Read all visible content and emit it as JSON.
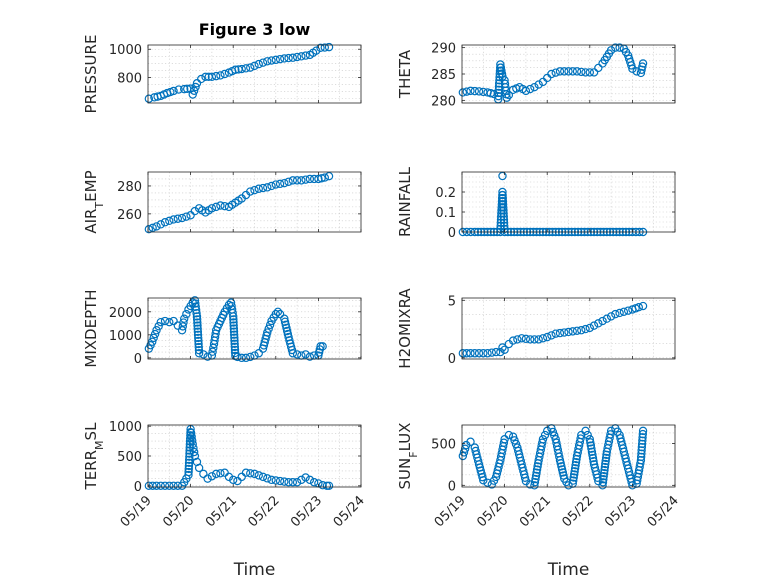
{
  "colors": {
    "marker": "#0072bd",
    "axis": "#262626",
    "grid": "#c8c8c8"
  },
  "chart_data": [
    {
      "type": "scatter",
      "title": "Figure 3 low",
      "ylabel": "PRESSURE",
      "xlim": [
        0,
        5
      ],
      "ylim": [
        620,
        1030
      ],
      "yticks": [
        800,
        1000
      ],
      "x": [
        0.02,
        0.15,
        0.3,
        0.45,
        0.6,
        0.72,
        0.85,
        0.92,
        1.0,
        1.05,
        1.15,
        1.25,
        1.35,
        1.5,
        1.7,
        1.9,
        2.05,
        2.2,
        2.4,
        2.6,
        2.8,
        3.0,
        3.2,
        3.4,
        3.6,
        3.8,
        3.95,
        4.05,
        4.15,
        4.25
      ],
      "y": [
        650,
        660,
        670,
        690,
        705,
        715,
        718,
        720,
        722,
        680,
        760,
        790,
        805,
        805,
        815,
        835,
        855,
        860,
        870,
        895,
        915,
        925,
        935,
        940,
        950,
        960,
        990,
        1010,
        1012,
        1015
      ]
    },
    {
      "type": "scatter",
      "ylabel": "THETA",
      "xlim": [
        0,
        5
      ],
      "ylim": [
        279.5,
        290.5
      ],
      "yticks": [
        280,
        285,
        290
      ],
      "x": [
        0.02,
        0.2,
        0.4,
        0.6,
        0.75,
        0.85,
        0.9,
        0.95,
        1.0,
        1.05,
        1.1,
        1.2,
        1.35,
        1.5,
        1.7,
        1.9,
        2.1,
        2.3,
        2.5,
        2.7,
        2.9,
        3.1,
        3.3,
        3.5,
        3.6,
        3.7,
        3.8,
        3.9,
        4.0,
        4.1,
        4.2,
        4.25
      ],
      "y": [
        281.5,
        281.8,
        281.7,
        281.5,
        281.2,
        280.2,
        286.8,
        284.5,
        283.8,
        280.5,
        281.0,
        282.0,
        282.5,
        281.8,
        282.5,
        283.5,
        285.0,
        285.5,
        285.5,
        285.5,
        285.3,
        285.3,
        287.0,
        289.5,
        290.0,
        290.0,
        289.8,
        288.5,
        286.0,
        285.5,
        285.2,
        287.0
      ]
    },
    {
      "type": "scatter",
      "ylabel": "AIR_TEMP",
      "xlim": [
        0,
        5
      ],
      "ylim": [
        247,
        290
      ],
      "yticks": [
        260,
        280
      ],
      "x": [
        0.02,
        0.2,
        0.4,
        0.6,
        0.8,
        1.0,
        1.1,
        1.2,
        1.35,
        1.5,
        1.7,
        1.9,
        2.05,
        2.2,
        2.4,
        2.6,
        2.8,
        3.0,
        3.2,
        3.4,
        3.6,
        3.8,
        4.0,
        4.15,
        4.25
      ],
      "y": [
        249,
        251,
        254,
        256,
        257,
        259,
        262,
        264,
        261,
        264,
        266,
        265,
        268,
        271,
        276,
        278,
        279,
        281,
        282,
        284,
        284,
        285,
        285,
        286,
        287
      ]
    },
    {
      "type": "scatter",
      "ylabel": "RAINFALL",
      "xlim": [
        0,
        5
      ],
      "ylim": [
        0,
        0.3
      ],
      "yticks": [
        0,
        0.1,
        0.2
      ],
      "x": [
        0.02,
        0.3,
        0.6,
        0.9,
        0.95,
        1.0,
        1.3,
        1.6,
        1.9,
        2.2,
        2.5,
        2.8,
        3.1,
        3.4,
        3.7,
        4.0,
        4.25
      ],
      "y": [
        0,
        0,
        0,
        0,
        0.2,
        0,
        0,
        0,
        0,
        0,
        0,
        0,
        0,
        0,
        0,
        0,
        0
      ],
      "extra_point": {
        "x": 0.95,
        "y": 0.28
      }
    },
    {
      "type": "scatter",
      "ylabel": "MIXDEPTH",
      "xlim": [
        0,
        5
      ],
      "ylim": [
        -50,
        2600
      ],
      "yticks": [
        0,
        1000,
        2000
      ],
      "x": [
        0.02,
        0.1,
        0.2,
        0.3,
        0.4,
        0.5,
        0.6,
        0.7,
        0.8,
        0.85,
        0.9,
        0.95,
        1.0,
        1.05,
        1.1,
        1.15,
        1.2,
        1.3,
        1.4,
        1.5,
        1.55,
        1.6,
        1.7,
        1.8,
        1.9,
        1.95,
        2.0,
        2.05,
        2.1,
        2.2,
        2.3,
        2.4,
        2.5,
        2.6,
        2.7,
        2.8,
        2.9,
        3.0,
        3.05,
        3.1,
        3.2,
        3.3,
        3.4,
        3.5,
        3.6,
        3.7,
        3.8,
        3.9,
        4.0,
        4.05,
        4.1
      ],
      "y": [
        400,
        700,
        1200,
        1550,
        1600,
        1550,
        1600,
        1400,
        1200,
        1700,
        1900,
        2100,
        2250,
        2400,
        2500,
        1800,
        200,
        150,
        50,
        100,
        600,
        1200,
        1600,
        2000,
        2300,
        2400,
        1800,
        80,
        40,
        0,
        0,
        40,
        100,
        200,
        400,
        1100,
        1600,
        1900,
        2000,
        1900,
        1700,
        900,
        200,
        150,
        100,
        150,
        50,
        100,
        100,
        500,
        500
      ]
    },
    {
      "type": "scatter",
      "ylabel": "H2OMIXRA",
      "xlim": [
        0,
        5
      ],
      "ylim": [
        -0.1,
        5.2
      ],
      "yticks": [
        0,
        5
      ],
      "x": [
        0.02,
        0.2,
        0.4,
        0.6,
        0.8,
        0.9,
        0.95,
        1.0,
        1.1,
        1.2,
        1.4,
        1.6,
        1.8,
        2.0,
        2.2,
        2.4,
        2.6,
        2.8,
        3.0,
        3.2,
        3.4,
        3.6,
        3.8,
        4.0,
        4.15,
        4.25
      ],
      "y": [
        0.4,
        0.4,
        0.4,
        0.4,
        0.5,
        0.5,
        0.9,
        0.7,
        1.2,
        1.5,
        1.7,
        1.6,
        1.6,
        1.8,
        2.1,
        2.2,
        2.3,
        2.4,
        2.6,
        3.0,
        3.4,
        3.8,
        4.0,
        4.2,
        4.4,
        4.5
      ]
    },
    {
      "type": "scatter",
      "ylabel": "TERR_MSL",
      "xlabel": "Time",
      "xlim": [
        0,
        5
      ],
      "ylim": [
        -20,
        1020
      ],
      "yticks": [
        0,
        500,
        1000
      ],
      "xtick_labels": [
        "05/19",
        "05/20",
        "05/21",
        "05/22",
        "05/23",
        "05/24"
      ],
      "x": [
        0.02,
        0.2,
        0.4,
        0.6,
        0.8,
        0.95,
        1.0,
        1.05,
        1.1,
        1.15,
        1.2,
        1.3,
        1.4,
        1.6,
        1.8,
        1.9,
        2.0,
        2.1,
        2.3,
        2.5,
        2.7,
        2.9,
        3.1,
        3.3,
        3.5,
        3.7,
        3.9,
        4.0,
        4.1,
        4.2,
        4.25
      ],
      "y": [
        0,
        0,
        0,
        0,
        0,
        180,
        950,
        700,
        500,
        400,
        300,
        200,
        120,
        200,
        220,
        150,
        100,
        80,
        220,
        200,
        150,
        100,
        80,
        60,
        60,
        140,
        60,
        40,
        10,
        0,
        0
      ]
    },
    {
      "type": "scatter",
      "ylabel": "SUN_FLUX",
      "xlabel": "Time",
      "xlim": [
        0,
        5
      ],
      "ylim": [
        -20,
        720
      ],
      "yticks": [
        0,
        500
      ],
      "xtick_labels": [
        "05/19",
        "05/20",
        "05/21",
        "05/22",
        "05/23",
        "05/24"
      ],
      "x": [
        0.02,
        0.1,
        0.2,
        0.3,
        0.4,
        0.5,
        0.6,
        0.7,
        0.8,
        0.9,
        1.0,
        1.1,
        1.2,
        1.3,
        1.4,
        1.5,
        1.6,
        1.7,
        1.8,
        1.9,
        2.0,
        2.1,
        2.2,
        2.3,
        2.4,
        2.5,
        2.6,
        2.7,
        2.8,
        2.9,
        3.0,
        3.1,
        3.2,
        3.3,
        3.4,
        3.5,
        3.6,
        3.7,
        3.8,
        3.9,
        4.0,
        4.1,
        4.2,
        4.25
      ],
      "y": [
        350,
        480,
        520,
        450,
        250,
        60,
        30,
        10,
        100,
        300,
        550,
        600,
        580,
        450,
        250,
        50,
        10,
        0,
        300,
        550,
        650,
        680,
        550,
        300,
        80,
        0,
        20,
        350,
        600,
        650,
        550,
        250,
        50,
        0,
        400,
        650,
        680,
        600,
        400,
        200,
        0,
        20,
        300,
        650
      ]
    }
  ]
}
